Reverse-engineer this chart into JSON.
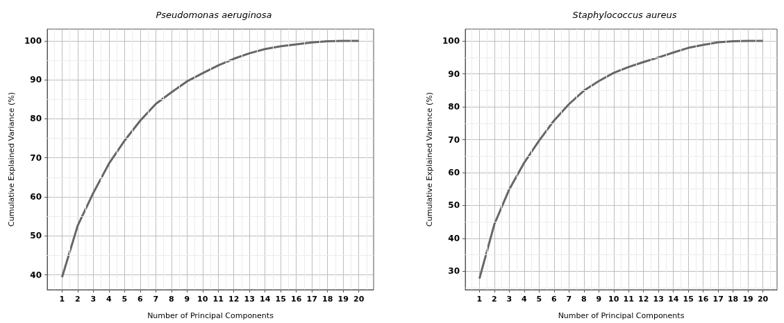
{
  "chart_data": [
    {
      "type": "line",
      "title": "Pseudomonas aeruginosa",
      "xlabel": "Number of Principal Components",
      "ylabel": "Cumulative Explained Variance (%)",
      "x": [
        1,
        2,
        3,
        4,
        5,
        6,
        7,
        8,
        9,
        10,
        11,
        12,
        13,
        14,
        15,
        16,
        17,
        18,
        19,
        20
      ],
      "series": [
        {
          "color": "#666666",
          "values": [
            39.4,
            52.6,
            61,
            68.5,
            74.4,
            79.5,
            83.8,
            86.8,
            89.6,
            91.7,
            93.7,
            95.4,
            96.8,
            97.9,
            98.6,
            99.1,
            99.6,
            99.9,
            100,
            100
          ]
        }
      ],
      "xlim": [
        0.05,
        20.95
      ],
      "xticks": [
        1,
        2,
        3,
        4,
        5,
        6,
        7,
        8,
        9,
        10,
        11,
        12,
        13,
        14,
        15,
        16,
        17,
        18,
        19,
        20
      ],
      "ylim": [
        36.2,
        103
      ],
      "yticks": [
        40,
        50,
        60,
        70,
        80,
        90,
        100
      ],
      "grid": true,
      "marker": "none",
      "line_style": "solid"
    },
    {
      "type": "line",
      "title": "Staphylococcus aureus",
      "xlabel": "Number of Principal Components",
      "ylabel": "Cumulative Explained Variance (%)",
      "x": [
        1,
        2,
        3,
        4,
        5,
        6,
        7,
        8,
        9,
        10,
        11,
        12,
        13,
        14,
        15,
        16,
        17,
        18,
        19,
        20
      ],
      "series": [
        {
          "color": "#666666",
          "values": [
            27.8,
            44.3,
            54.9,
            63,
            69.7,
            75.8,
            80.8,
            84.9,
            87.8,
            90.3,
            92.1,
            93.6,
            95,
            96.5,
            97.9,
            98.8,
            99.6,
            99.9,
            100,
            100
          ]
        }
      ],
      "xlim": [
        0.05,
        20.95
      ],
      "xticks": [
        1,
        2,
        3,
        4,
        5,
        6,
        7,
        8,
        9,
        10,
        11,
        12,
        13,
        14,
        15,
        16,
        17,
        18,
        19,
        20
      ],
      "ylim": [
        24.4,
        103.6
      ],
      "yticks": [
        30,
        40,
        50,
        60,
        70,
        80,
        90,
        100
      ],
      "grid": true,
      "marker": "none",
      "line_style": "solid"
    }
  ]
}
